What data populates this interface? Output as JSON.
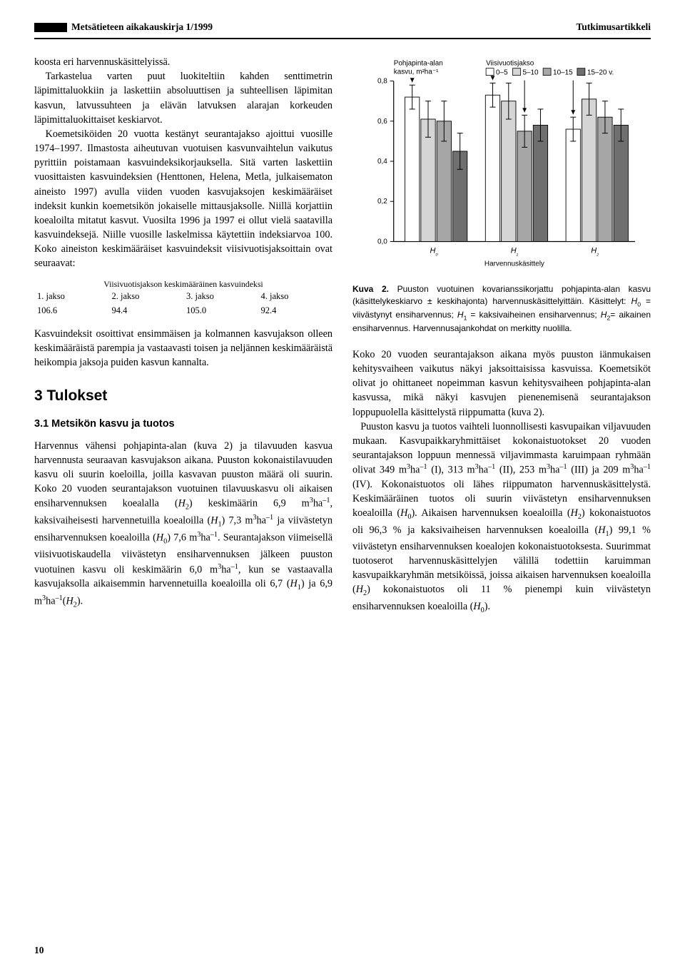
{
  "header": {
    "left": "Metsätieteen aikakauskirja 1/1999",
    "right": "Tutkimusartikkeli"
  },
  "leftcol": {
    "para1": "koosta eri harvennuskäsittelyissä.",
    "para2": "Tarkastelua varten puut luokiteltiin kahden senttimetrin läpimittaluokkiin ja laskettiin absoluuttisen ja suhteellisen läpimitan kasvun, latvussuhteen ja elävän latvuksen alarajan korkeuden läpimittaluokittaiset keskiarvot.",
    "para3": "Koemetsiköiden 20 vuotta kestänyt seurantajakso ajoittui vuosille 1974–1997. Ilmastosta aiheutuvan vuotuisen kasvunvaihtelun vaikutus pyrittiin poistamaan kasvuindeksikorjauksella. Sitä varten laskettiin vuosittaisten kasvuindeksien (Henttonen, Helena, Metla, julkaisematon aineisto 1997) avulla viiden vuoden kasvujaksojen keskimääräiset indeksit kunkin koemetsikön jokaiselle mittausjaksolle. Niillä korjattiin koealoilta mitatut kasvut. Vuosilta 1996 ja 1997 ei ollut vielä saatavilla kasvuindeksejä. Niille vuosille laskelmissa käytettiin indeksiarvoa 100. Koko aineiston keskimääräiset kasvuindeksit viisivuotisjaksoittain ovat seuraavat:",
    "idx_caption": "Viisivuotisjakson keskimääräinen kasvuindeksi",
    "idx_headers": [
      "1. jakso",
      "2. jakso",
      "3. jakso",
      "4. jakso"
    ],
    "idx_values": [
      "106.6",
      "94.4",
      "105.0",
      "92.4"
    ],
    "para4": "Kasvuindeksit osoittivat ensimmäisen ja kolmannen kasvujakson olleen keskimääräistä parempia ja vastaavasti toisen ja neljännen keskimääräistä heikompia jaksoja puiden kasvun kannalta.",
    "h2": "3 Tulokset",
    "h3": "3.1 Metsikön kasvu ja tuotos"
  },
  "leftcol_bottom_html": "Harvennus vähensi pohjapinta-alan (kuva 2) ja tilavuuden kasvua harvennusta seuraavan kasvujakson aikana. Puuston kokonaistilavuuden kasvu oli suurin koeloilla, joilla kasvavan puuston määrä oli suurin. Koko 20 vuoden seurantajakson vuotuinen tilavuuskasvu oli aikaisen ensiharvennuksen koealalla (<i>H</i><sub>2</sub>) keskimäärin 6,9 m<sup>3</sup>ha<sup>–1</sup>, kaksivaiheisesti harvennetuilla koealoilla (<i>H</i><sub>1</sub>) 7,3 m<sup>3</sup>ha<sup>–1</sup> ja viivästetyn ensiharvennuksen koealoilla (<i>H</i><sub>0</sub>) 7,6 m<sup>3</sup>ha<sup>–1</sup>. Seurantajakson viimeisellä viisivuotiskaudella viivästetyn ensiharvennuksen jälkeen puuston vuotuinen kasvu oli keskimäärin 6,0 m<sup>3</sup>ha<sup>–1</sup>, kun se vastaavalla kasvujaksolla aikaisemmin harvennetuilla koealoilla oli 6,7 (<i>H</i><sub>1</sub>) ja 6,9 m<sup>3</sup>ha<sup>–1</sup>(<i>H</i><sub>2</sub>).",
  "chart": {
    "type": "grouped-bar-with-errorbars",
    "ylabel_line1": "Pohjapinta-alan",
    "ylabel_line2": "kasvu, m²ha⁻¹",
    "legend_title": "Viisivuotisjakso",
    "legend": [
      {
        "label": "0–5",
        "color": "#ffffff"
      },
      {
        "label": "5–10",
        "color": "#d5d5d5"
      },
      {
        "label": "10–15",
        "color": "#a6a6a6"
      },
      {
        "label": "15–20 v.",
        "color": "#6f6f6f"
      }
    ],
    "ylim": [
      0,
      0.8
    ],
    "yticks": [
      0,
      0.2,
      0.4,
      0.6,
      0.8
    ],
    "xlabel": "Harvennuskäsittely",
    "xcats": [
      "H₀",
      "H₁",
      "H₂"
    ],
    "groups": [
      {
        "cat": "H0",
        "arrows": [
          1,
          0,
          0,
          0
        ],
        "bars": [
          {
            "v": 0.72,
            "lo": 0.66,
            "hi": 0.78
          },
          {
            "v": 0.61,
            "lo": 0.52,
            "hi": 0.7
          },
          {
            "v": 0.6,
            "lo": 0.5,
            "hi": 0.7
          },
          {
            "v": 0.45,
            "lo": 0.36,
            "hi": 0.54
          }
        ]
      },
      {
        "cat": "H1",
        "arrows": [
          1,
          0,
          1,
          0
        ],
        "bars": [
          {
            "v": 0.73,
            "lo": 0.67,
            "hi": 0.79
          },
          {
            "v": 0.7,
            "lo": 0.61,
            "hi": 0.79
          },
          {
            "v": 0.55,
            "lo": 0.47,
            "hi": 0.63
          },
          {
            "v": 0.58,
            "lo": 0.5,
            "hi": 0.66
          }
        ]
      },
      {
        "cat": "H2",
        "arrows": [
          1,
          0,
          0,
          0
        ],
        "bars": [
          {
            "v": 0.56,
            "lo": 0.5,
            "hi": 0.62
          },
          {
            "v": 0.71,
            "lo": 0.63,
            "hi": 0.79
          },
          {
            "v": 0.62,
            "lo": 0.54,
            "hi": 0.7
          },
          {
            "v": 0.58,
            "lo": 0.5,
            "hi": 0.66
          }
        ]
      }
    ],
    "background_color": "#ffffff",
    "axis_color": "#000000",
    "bar_border": "#000000",
    "font_size_axis": 10,
    "font_size_legend": 10
  },
  "figcaption_html": "<b>Kuva 2.</b> Puuston vuotuinen kovarianssikorjattu pohjapinta-alan kasvu (käsittelykeskiarvo ± keskihajonta) harvennuskäsittelyittäin. Käsittelyt: <i>H</i><sub>0</sub> = viivästynyt ensiharvennus; <i>H</i><sub>1</sub> = kaksivaiheinen ensiharvennus; <i>H</i><sub>2</sub>= aikainen ensiharvennus. Harvennusajankohdat on merkitty nuolilla.",
  "rightcol_bottom_html": "Koko 20 vuoden seurantajakson aikana myös puuston iänmukaisen kehitysvaiheen vaikutus näkyi jaksoittaisissa kasvuissa. Koemetsiköt olivat jo ohittaneet nopeimman kasvun kehitysvaiheen pohjapinta-alan kasvussa, mikä näkyi kasvujen pienenemisenä seurantajakson loppupuolella käsittelystä riippumatta (kuva 2).<br>&nbsp;&nbsp;&nbsp;Puuston kasvu ja tuotos vaihteli luonnollisesti kasvupaikan viljavuuden mukaan. Kasvupaikkaryhmittäiset kokonaistuotokset 20 vuoden seurantajakson loppuun mennessä viljavimmasta karuimpaan ryhmään olivat 349 m<sup>3</sup>ha<sup>–1</sup> (I), 313 m<sup>3</sup>ha<sup>–1</sup> (II), 253 m<sup>3</sup>ha<sup>–1</sup> (III) ja 209 m<sup>3</sup>ha<sup>–1</sup> (IV). Kokonaistuotos oli lähes riippumaton harvennuskäsittelystä. Keskimääräinen tuotos oli suurin viivästetyn ensiharvennuksen koealoilla (<i>H</i><sub>0</sub>). Aikaisen harvennuksen koealoilla (<i>H</i><sub>2</sub>) kokonaistuotos oli 96,3 % ja kaksivaiheisen harvennuksen koealoilla (<i>H</i><sub>1</sub>) 99,1 % viivästetyn ensiharvennuksen koealojen kokonaistuotoksesta. Suurimmat tuotoserot harvennuskäsittelyjen välillä todettiin karuimman kasvupaikkaryhmän metsiköissä, joissa aikaisen harvennuksen koealoilla (<i>H</i><sub>2</sub>) kokonaistuotos oli 11 % pienempi kuin viivästetyn ensiharvennuksen koealoilla (<i>H</i><sub>0</sub>).",
  "pagenum": "10"
}
